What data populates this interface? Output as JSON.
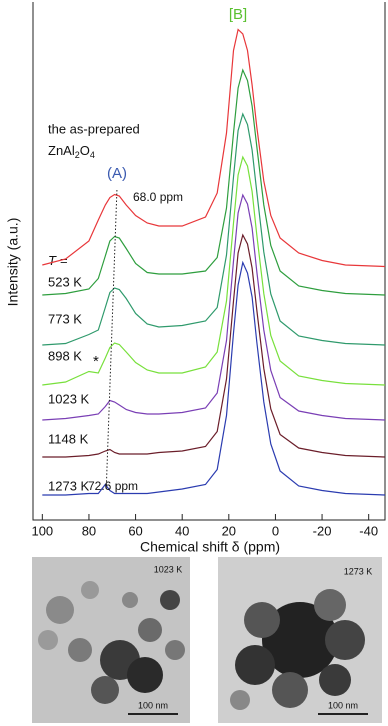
{
  "chart_data": {
    "type": "line",
    "xlabel": "Chemical shift δ (ppm)",
    "ylabel": "Intensity (a.u.)",
    "xlim": [
      104,
      -47
    ],
    "xticks": [
      100,
      80,
      60,
      40,
      20,
      0,
      -20,
      -40
    ],
    "x": [
      100,
      90,
      80,
      76,
      73,
      71,
      69,
      67,
      64,
      60,
      55,
      50,
      40,
      30,
      25,
      21,
      18,
      16,
      14,
      12,
      10,
      8,
      5,
      2,
      -2,
      -10,
      -20,
      -30,
      -47
    ],
    "series": [
      {
        "name": "the as-prepared",
        "color": "#e8373a",
        "values": [
          2,
          6,
          18,
          32,
          42,
          47,
          49,
          48,
          42,
          35,
          30,
          28,
          28,
          34,
          50,
          90,
          145,
          159,
          156,
          145,
          122,
          94,
          58,
          35,
          20,
          10,
          5,
          2,
          1
        ]
      },
      {
        "name": "523 K",
        "color": "#2e9e3e",
        "values": [
          0,
          1,
          4,
          11,
          26,
          36,
          39,
          38,
          31,
          21,
          15,
          14,
          14,
          16,
          25,
          58,
          108,
          138,
          150,
          143,
          126,
          99,
          60,
          33,
          16,
          6,
          3,
          1,
          0
        ]
      },
      {
        "name": "773 K",
        "color": "#2f9a6c",
        "values": [
          0,
          1,
          7,
          10,
          25,
          35,
          38,
          37,
          31,
          21,
          14,
          12,
          13,
          16,
          25,
          60,
          112,
          143,
          154,
          147,
          130,
          102,
          62,
          34,
          16,
          6,
          3,
          1,
          0
        ]
      },
      {
        "name": "898 K",
        "color": "#78e03c",
        "values": [
          0,
          2,
          9,
          8,
          18,
          25,
          28,
          27,
          22,
          15,
          10,
          8,
          8,
          12,
          22,
          56,
          108,
          140,
          152,
          146,
          129,
          100,
          61,
          33,
          16,
          6,
          3,
          1,
          0
        ]
      },
      {
        "name": "1023 K",
        "color": "#7a3fb5",
        "values": [
          0,
          1,
          3,
          4,
          9,
          13,
          12,
          10,
          7,
          5,
          4,
          4,
          5,
          8,
          18,
          53,
          106,
          138,
          150,
          144,
          128,
          99,
          60,
          33,
          15,
          6,
          3,
          1,
          0
        ]
      },
      {
        "name": "1148 K",
        "color": "#6b1e2a",
        "values": [
          0,
          0,
          1,
          2,
          4,
          5,
          3,
          2,
          2,
          2,
          2,
          3,
          4,
          7,
          17,
          52,
          104,
          136,
          148,
          142,
          126,
          98,
          59,
          32,
          15,
          6,
          3,
          1,
          0
        ]
      },
      {
        "name": "1273 K",
        "color": "#2b3cb0",
        "values": [
          0,
          0,
          1,
          1,
          7,
          3,
          1,
          1,
          1,
          1,
          1,
          2,
          4,
          7,
          17,
          53,
          108,
          140,
          155,
          148,
          132,
          102,
          62,
          34,
          16,
          6,
          3,
          1,
          0
        ]
      }
    ],
    "annotations": {
      "formula": [
        "ZnAl",
        "2",
        "O",
        "4"
      ],
      "peak_a": "(A)",
      "peak_b": "[B]",
      "shift_top": {
        "label": "68.0 ppm",
        "value": 68.0
      },
      "shift_bottom": {
        "label": "72.6 ppm",
        "value": 72.6
      },
      "temperature": [
        "T",
        "="
      ],
      "star": "*"
    }
  },
  "images": [
    {
      "label": "1023 K",
      "scale_bar": "100 nm"
    },
    {
      "label": "1273 K",
      "scale_bar": "100 nm"
    }
  ]
}
